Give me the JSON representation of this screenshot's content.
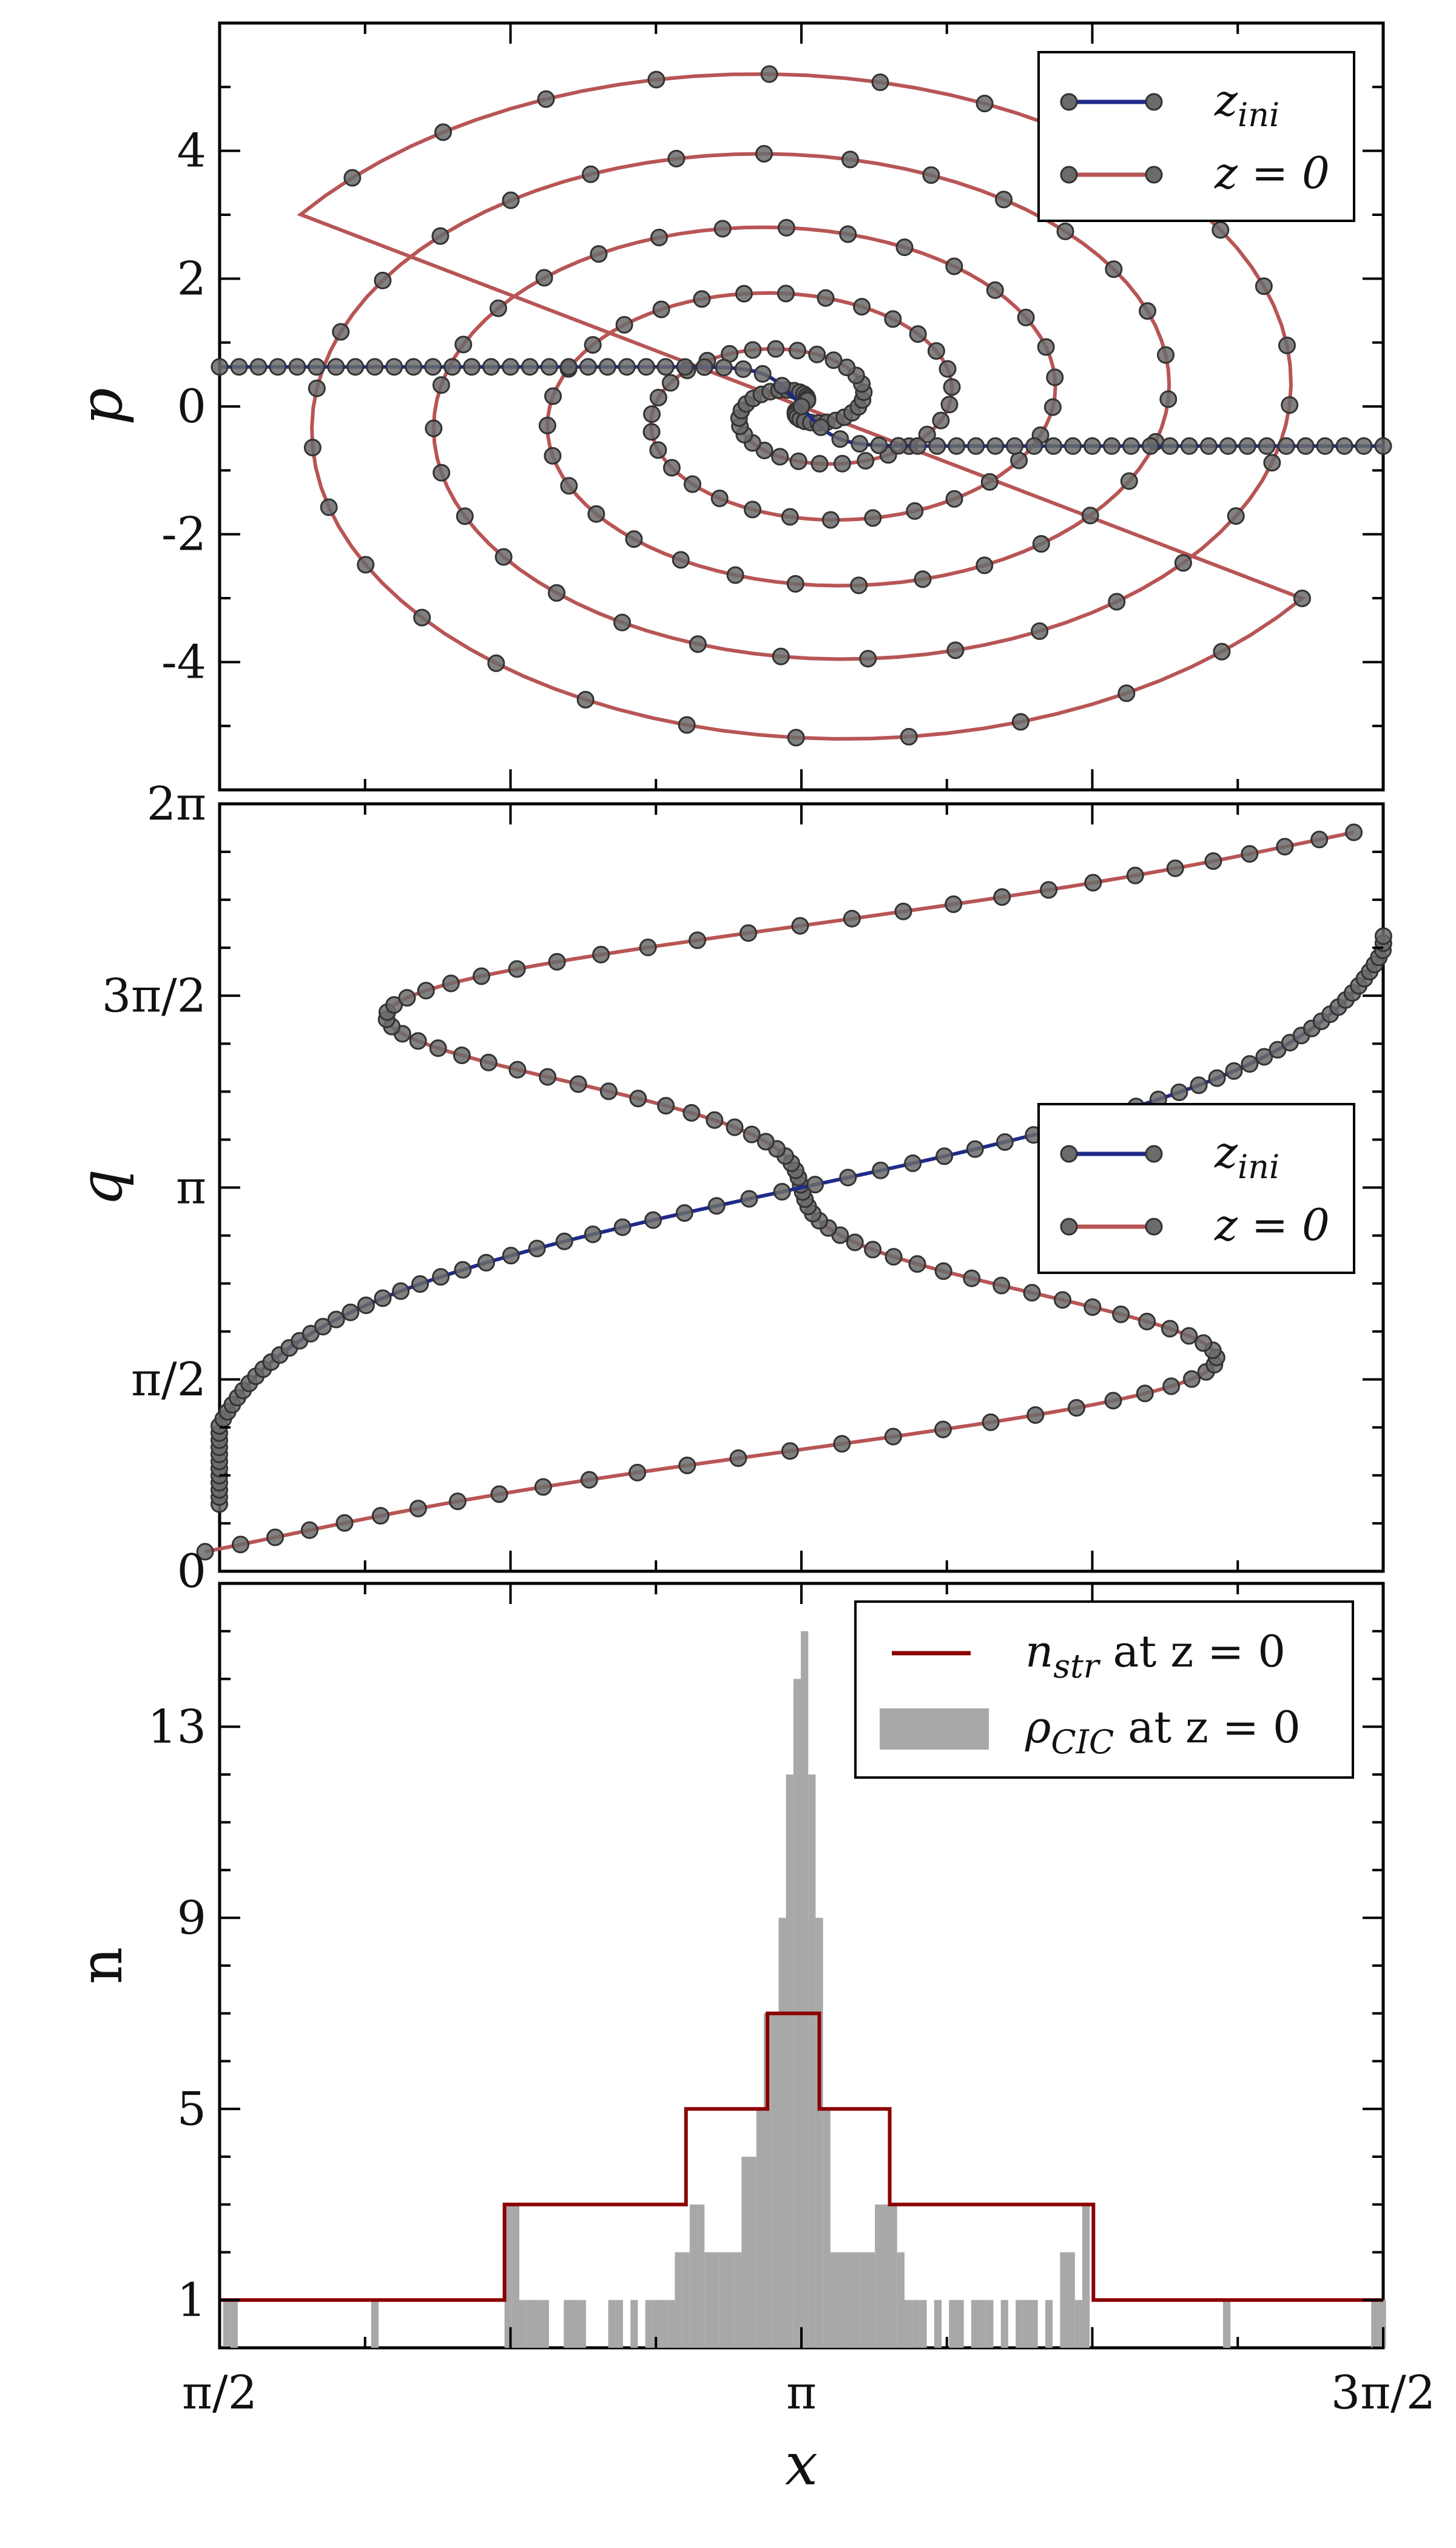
{
  "chart_data": [
    {
      "type": "line",
      "panel": "top",
      "ylabel": "p",
      "xlim": [
        1.5708,
        4.7124
      ],
      "ylim": [
        -6,
        6
      ],
      "yticks": [
        {
          "value": 4,
          "label": "4"
        },
        {
          "value": 2,
          "label": "2"
        },
        {
          "value": 0,
          "label": "0"
        },
        {
          "value": -2,
          "label": "-2"
        },
        {
          "value": -4,
          "label": "-4"
        }
      ],
      "legend_position": "top-right",
      "series": [
        {
          "name": "z_ini",
          "legend_main": "z",
          "legend_sub": "ini",
          "color": "#1f2a8a"
        },
        {
          "name": "z = 0",
          "legend_main": "z = 0",
          "legend_sub": "",
          "color": "#b85555"
        }
      ]
    },
    {
      "type": "line",
      "panel": "middle",
      "ylabel": "q",
      "xlim": [
        1.5708,
        4.7124
      ],
      "ylim": [
        0,
        6.2832
      ],
      "yticks": [
        {
          "value": 6.2832,
          "label": "2π"
        },
        {
          "value": 4.7124,
          "label": "3π/2"
        },
        {
          "value": 3.1416,
          "label": "π"
        },
        {
          "value": 1.5708,
          "label": "π/2"
        },
        {
          "value": 0,
          "label": "0"
        }
      ],
      "legend_position": "center-right",
      "series": [
        {
          "name": "z_ini",
          "legend_main": "z",
          "legend_sub": "ini",
          "color": "#1f2a8a"
        },
        {
          "name": "z = 0",
          "legend_main": "z = 0",
          "legend_sub": "",
          "color": "#b85555"
        }
      ]
    },
    {
      "type": "histogram",
      "panel": "bottom",
      "ylabel": "n",
      "xlabel": "x",
      "xlim": [
        1.5708,
        4.7124
      ],
      "ylim": [
        0,
        16
      ],
      "yticks": [
        {
          "value": 13,
          "label": "13"
        },
        {
          "value": 9,
          "label": "9"
        },
        {
          "value": 5,
          "label": "5"
        },
        {
          "value": 1,
          "label": "1"
        }
      ],
      "xticks": [
        {
          "value": 1.5708,
          "label": "π/2"
        },
        {
          "value": 3.1416,
          "label": "π"
        },
        {
          "value": 4.7124,
          "label": "3π/2"
        }
      ],
      "legend_position": "top-right",
      "legend": [
        {
          "main": "n",
          "sub": "str",
          "suffix": " at z = 0",
          "color": "#8b0000",
          "kind": "line"
        },
        {
          "main": "ρ",
          "sub": "CIC",
          "suffix": " at z = 0",
          "color": "#a8a8a8",
          "kind": "patch"
        }
      ],
      "n_str_steps": [
        {
          "x0": 1.5708,
          "x1": 2.34,
          "y": 1
        },
        {
          "x0": 2.34,
          "x1": 2.83,
          "y": 3
        },
        {
          "x0": 2.83,
          "x1": 3.05,
          "y": 5
        },
        {
          "x0": 3.05,
          "x1": 3.19,
          "y": 7
        },
        {
          "x0": 3.19,
          "x1": 3.38,
          "y": 5
        },
        {
          "x0": 3.38,
          "x1": 3.93,
          "y": 3
        },
        {
          "x0": 3.93,
          "x1": 4.7124,
          "y": 1
        }
      ],
      "rho_bars": [
        {
          "x": 1.59,
          "y": 1
        },
        {
          "x": 1.61,
          "y": 1
        },
        {
          "x": 1.99,
          "y": 1
        },
        {
          "x": 2.35,
          "y": 3
        },
        {
          "x": 2.37,
          "y": 3
        },
        {
          "x": 2.39,
          "y": 1
        },
        {
          "x": 2.41,
          "y": 1
        },
        {
          "x": 2.43,
          "y": 1
        },
        {
          "x": 2.45,
          "y": 1
        },
        {
          "x": 2.51,
          "y": 1
        },
        {
          "x": 2.53,
          "y": 1
        },
        {
          "x": 2.55,
          "y": 1
        },
        {
          "x": 2.63,
          "y": 1
        },
        {
          "x": 2.65,
          "y": 1
        },
        {
          "x": 2.69,
          "y": 1
        },
        {
          "x": 2.73,
          "y": 1
        },
        {
          "x": 2.75,
          "y": 1
        },
        {
          "x": 2.77,
          "y": 1
        },
        {
          "x": 2.79,
          "y": 1
        },
        {
          "x": 2.81,
          "y": 2
        },
        {
          "x": 2.83,
          "y": 2
        },
        {
          "x": 2.85,
          "y": 3
        },
        {
          "x": 2.87,
          "y": 3
        },
        {
          "x": 2.89,
          "y": 2
        },
        {
          "x": 2.91,
          "y": 2
        },
        {
          "x": 2.93,
          "y": 2
        },
        {
          "x": 2.95,
          "y": 2
        },
        {
          "x": 2.97,
          "y": 2
        },
        {
          "x": 2.99,
          "y": 4
        },
        {
          "x": 3.01,
          "y": 4
        },
        {
          "x": 3.03,
          "y": 5
        },
        {
          "x": 3.05,
          "y": 7
        },
        {
          "x": 3.07,
          "y": 7
        },
        {
          "x": 3.09,
          "y": 9
        },
        {
          "x": 3.11,
          "y": 12
        },
        {
          "x": 3.13,
          "y": 14
        },
        {
          "x": 3.15,
          "y": 15
        },
        {
          "x": 3.17,
          "y": 12
        },
        {
          "x": 3.19,
          "y": 9
        },
        {
          "x": 3.21,
          "y": 5
        },
        {
          "x": 3.23,
          "y": 2
        },
        {
          "x": 3.25,
          "y": 2
        },
        {
          "x": 3.27,
          "y": 2
        },
        {
          "x": 3.29,
          "y": 2
        },
        {
          "x": 3.31,
          "y": 2
        },
        {
          "x": 3.33,
          "y": 2
        },
        {
          "x": 3.35,
          "y": 3
        },
        {
          "x": 3.37,
          "y": 3
        },
        {
          "x": 3.39,
          "y": 3
        },
        {
          "x": 3.41,
          "y": 2
        },
        {
          "x": 3.43,
          "y": 1
        },
        {
          "x": 3.45,
          "y": 1
        },
        {
          "x": 3.47,
          "y": 1
        },
        {
          "x": 3.51,
          "y": 1
        },
        {
          "x": 3.55,
          "y": 1
        },
        {
          "x": 3.57,
          "y": 1
        },
        {
          "x": 3.61,
          "y": 1
        },
        {
          "x": 3.63,
          "y": 1
        },
        {
          "x": 3.65,
          "y": 1
        },
        {
          "x": 3.69,
          "y": 1
        },
        {
          "x": 3.73,
          "y": 1
        },
        {
          "x": 3.75,
          "y": 1
        },
        {
          "x": 3.77,
          "y": 1
        },
        {
          "x": 3.81,
          "y": 1
        },
        {
          "x": 3.85,
          "y": 2
        },
        {
          "x": 3.87,
          "y": 2
        },
        {
          "x": 3.89,
          "y": 1
        },
        {
          "x": 3.91,
          "y": 3
        },
        {
          "x": 4.29,
          "y": 1
        },
        {
          "x": 4.69,
          "y": 1
        },
        {
          "x": 4.71,
          "y": 1
        }
      ]
    }
  ]
}
